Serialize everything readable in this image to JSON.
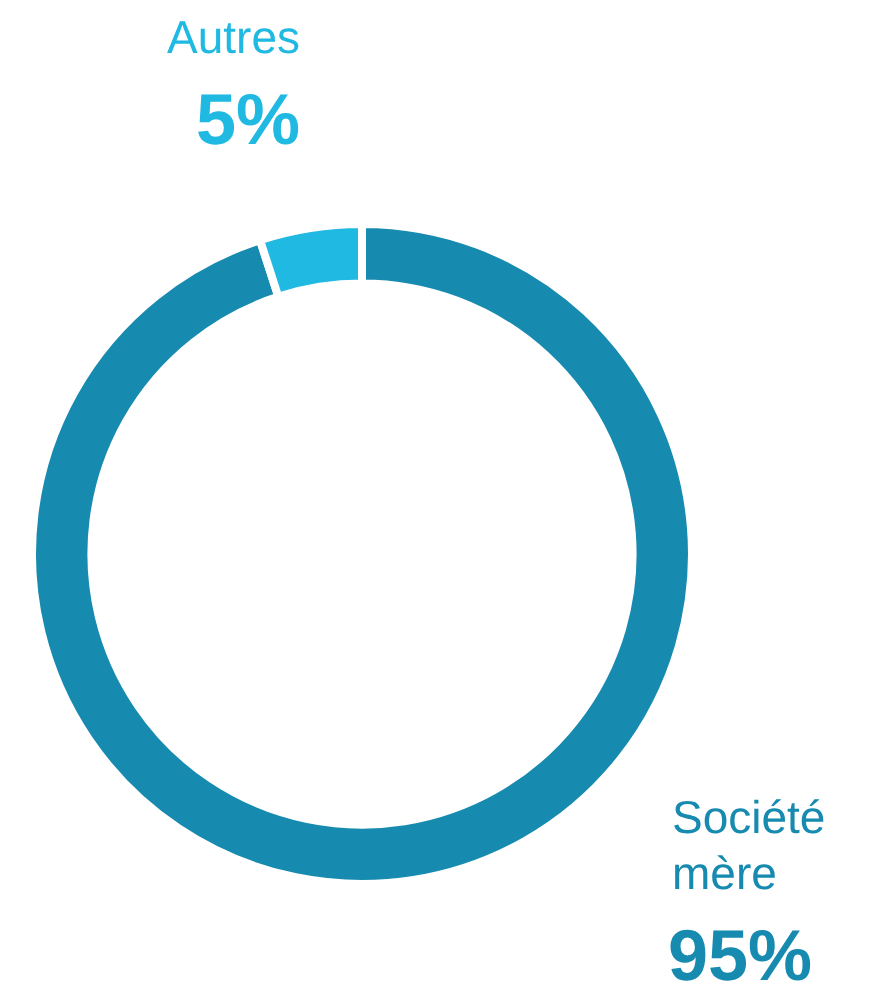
{
  "chart_data": {
    "type": "donut",
    "categories": [
      "Société mère",
      "Autres"
    ],
    "values": [
      95,
      5
    ],
    "value_labels": [
      "95%",
      "5%"
    ],
    "colors": [
      "#178ab0",
      "#1fb9e2"
    ],
    "legend": false
  }
}
